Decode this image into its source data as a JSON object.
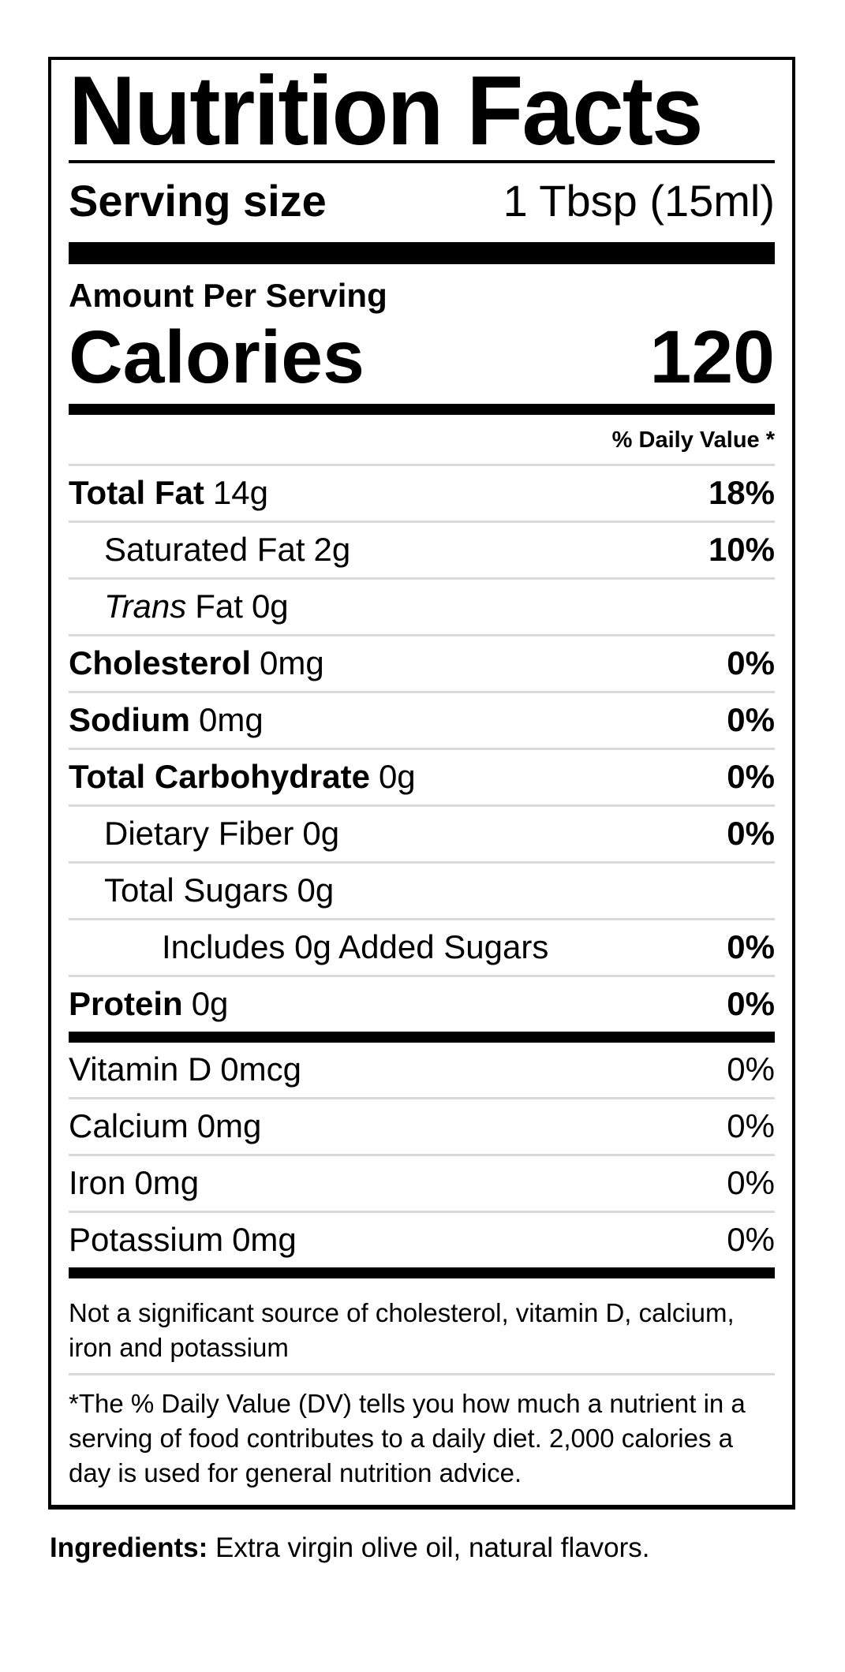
{
  "label": {
    "title": "Nutrition Facts",
    "serving_row": {
      "label": "Serving size",
      "value": "1 Tbsp (15ml)"
    },
    "amount_per_serving": "Amount Per Serving",
    "calories_row": {
      "label": "Calories",
      "value": "120"
    },
    "daily_value_header": "% Daily Value *",
    "rows": [
      {
        "name": "Total Fat",
        "amount": "14g",
        "dv": "18%"
      },
      {
        "name": "Saturated Fat",
        "amount": "2g",
        "dv": "10%"
      },
      {
        "name_italic": "Trans",
        "name": "Fat",
        "amount": "0g",
        "dv": ""
      },
      {
        "name": "Cholesterol",
        "amount": "0mg",
        "dv": "0%"
      },
      {
        "name": "Sodium",
        "amount": "0mg",
        "dv": "0%"
      },
      {
        "name": "Total Carbohydrate",
        "amount": "0g",
        "dv": "0%"
      },
      {
        "name": "Dietary Fiber",
        "amount": "0g",
        "dv": "0%"
      },
      {
        "name": "Total Sugars",
        "amount": "0g",
        "dv": ""
      },
      {
        "name": "Includes 0g Added Sugars",
        "amount": "",
        "dv": "0%"
      },
      {
        "name": "Protein",
        "amount": "0g",
        "dv": "0%"
      }
    ],
    "micronutrients": [
      {
        "name": "Vitamin D",
        "amount": "0mcg",
        "dv": "0%"
      },
      {
        "name": "Calcium",
        "amount": "0mg",
        "dv": "0%"
      },
      {
        "name": "Iron",
        "amount": "0mg",
        "dv": "0%"
      },
      {
        "name": "Potassium",
        "amount": "0mg",
        "dv": "0%"
      }
    ],
    "not_significant_note": "Not a significant source of cholesterol, vitamin D, calcium, iron and potassium",
    "footnote": "*The % Daily Value (DV) tells you how much a nutrient in a serving of food contributes to a daily diet. 2,000 calories a day is used for general nutrition advice.",
    "colors": {
      "text": "#000000",
      "separator": "#d9d9d9",
      "background": "#ffffff"
    }
  },
  "ingredients_row": {
    "label": "Ingredients:",
    "value": "Extra virgin olive oil, natural flavors."
  }
}
